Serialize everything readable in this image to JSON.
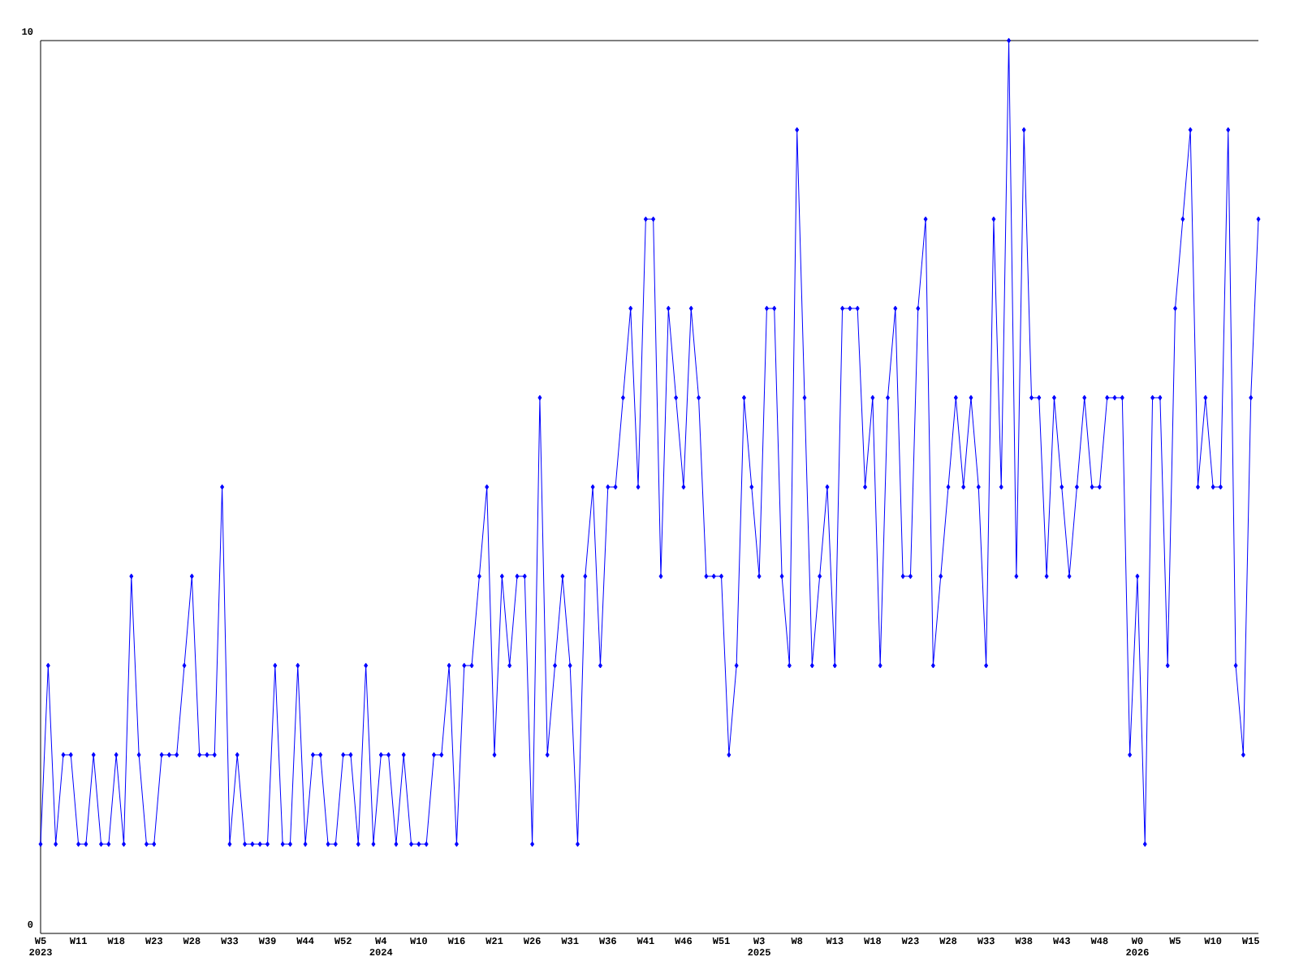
{
  "chart_data": {
    "type": "line",
    "categories": [
      "W5 2023",
      null,
      null,
      null,
      null,
      "W11",
      null,
      null,
      null,
      null,
      "W18",
      null,
      null,
      null,
      null,
      "W23",
      null,
      null,
      null,
      null,
      "W28",
      null,
      null,
      null,
      null,
      "W33",
      null,
      null,
      null,
      null,
      "W39",
      null,
      null,
      null,
      null,
      "W44",
      null,
      null,
      null,
      null,
      "W52",
      null,
      null,
      null,
      null,
      "W4 2024",
      null,
      null,
      null,
      null,
      "W10",
      null,
      null,
      null,
      null,
      "W16",
      null,
      null,
      null,
      null,
      "W21",
      null,
      null,
      null,
      null,
      "W26",
      null,
      null,
      null,
      null,
      "W31",
      null,
      null,
      null,
      null,
      "W36",
      null,
      null,
      null,
      null,
      "W41",
      null,
      null,
      null,
      null,
      "W46",
      null,
      null,
      null,
      null,
      "W51",
      null,
      null,
      null,
      null,
      "W3 2025",
      null,
      null,
      null,
      null,
      "W8",
      null,
      null,
      null,
      null,
      "W13",
      null,
      null,
      null,
      null,
      "W18",
      null,
      null,
      null,
      null,
      "W23",
      null,
      null,
      null,
      null,
      "W28",
      null,
      null,
      null,
      null,
      "W33",
      null,
      null,
      null,
      null,
      "W38",
      null,
      null,
      null,
      null,
      "W43",
      null,
      null,
      null,
      null,
      "W48",
      null,
      null,
      null,
      null,
      "W0 2026",
      null,
      null,
      null,
      null,
      "W5",
      null,
      null,
      null,
      null,
      "W10",
      null,
      null,
      null,
      null,
      "W15",
      null
    ],
    "series": [
      {
        "color": "#0000ff",
        "values": [
          1,
          3,
          1,
          2,
          2,
          1,
          1,
          2,
          1,
          1,
          2,
          1,
          4,
          2,
          1,
          1,
          2,
          2,
          2,
          3,
          4,
          2,
          2,
          2,
          5,
          1,
          2,
          1,
          1,
          1,
          1,
          3,
          1,
          1,
          3,
          1,
          2,
          2,
          1,
          1,
          2,
          2,
          1,
          3,
          1,
          2,
          2,
          1,
          2,
          1,
          1,
          1,
          2,
          2,
          3,
          1,
          3,
          3,
          4,
          5,
          2,
          4,
          3,
          4,
          4,
          1,
          6,
          2,
          3,
          4,
          3,
          1,
          4,
          5,
          3,
          5,
          5,
          6,
          7,
          5,
          8,
          8,
          4,
          7,
          6,
          5,
          7,
          6,
          4,
          4,
          4,
          2,
          3,
          6,
          5,
          4,
          7,
          7,
          4,
          3,
          9,
          6,
          3,
          4,
          5,
          3,
          7,
          7,
          7,
          5,
          6,
          3,
          6,
          7,
          4,
          4,
          7,
          8,
          3,
          4,
          5,
          6,
          5,
          6,
          5,
          3,
          8,
          5,
          10,
          4,
          9,
          6,
          6,
          4,
          6,
          5,
          4,
          5,
          6,
          5,
          5,
          6,
          6,
          6,
          2,
          4,
          1,
          6,
          6,
          3,
          7,
          8,
          9,
          5,
          6,
          5,
          5,
          9,
          3,
          2,
          6,
          8
        ]
      }
    ],
    "ylim": [
      0,
      10
    ],
    "yticks": [
      0,
      10
    ],
    "grid": false,
    "marker": "diamond",
    "line_style": "solid"
  }
}
